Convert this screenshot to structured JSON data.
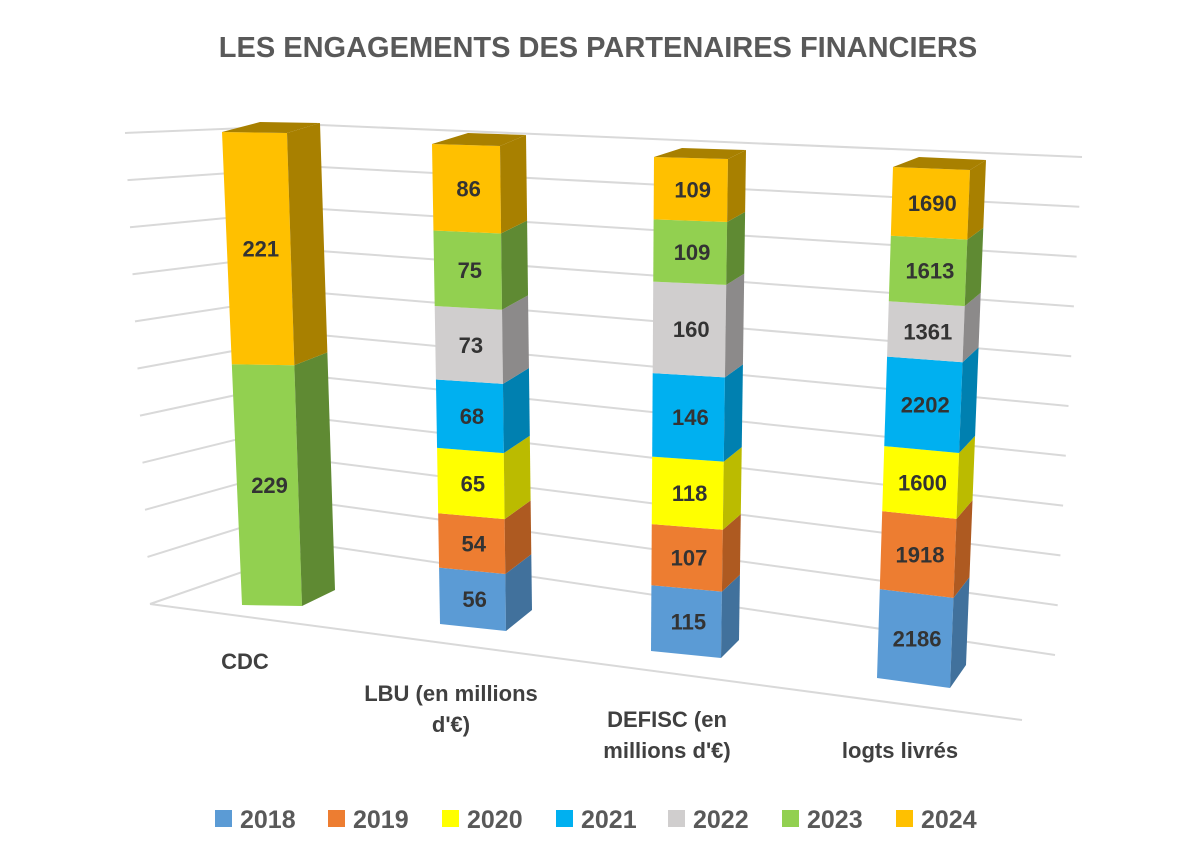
{
  "chart_data": {
    "type": "bar",
    "subtype": "3d-100%-stacked-column",
    "title": "LES ENGAGEMENTS DES PARTENAIRES FINANCIERS",
    "xlabel": "",
    "ylabel": "",
    "ylim": [
      0,
      100
    ],
    "grid": true,
    "gridline_count": 10,
    "legend_position": "bottom",
    "categories": [
      [
        "CDC"
      ],
      [
        "LBU (en millions",
        "d'€)"
      ],
      [
        "DEFISC  (en",
        "millions d'€)"
      ],
      [
        "logts livrés"
      ]
    ],
    "category_names": [
      "CDC",
      "LBU (en millions d'€)",
      "DEFISC  (en millions d'€)",
      "logts livrés"
    ],
    "series": [
      {
        "name": "2018",
        "color": "#5B9BD5",
        "side": "#41719C",
        "values": [
          null,
          56,
          115,
          2186
        ]
      },
      {
        "name": "2019",
        "color": "#ED7D31",
        "side": "#AE5A21",
        "values": [
          null,
          54,
          107,
          1918
        ]
      },
      {
        "name": "2020",
        "color": "#FFFF00",
        "side": "#BBBB00",
        "values": [
          null,
          65,
          118,
          1600
        ]
      },
      {
        "name": "2021",
        "color": "#00B0F0",
        "side": "#0080B0",
        "values": [
          null,
          68,
          146,
          2202
        ]
      },
      {
        "name": "2022",
        "color": "#D0CECE",
        "side": "#8C8A8A",
        "values": [
          null,
          73,
          160,
          1361
        ]
      },
      {
        "name": "2023",
        "color": "#92D050",
        "side": "#5F8A33",
        "values": [
          229,
          75,
          109,
          1613
        ]
      },
      {
        "name": "2024",
        "color": "#FFC000",
        "side": "#A88000",
        "values": [
          221,
          86,
          109,
          1690
        ]
      }
    ]
  }
}
